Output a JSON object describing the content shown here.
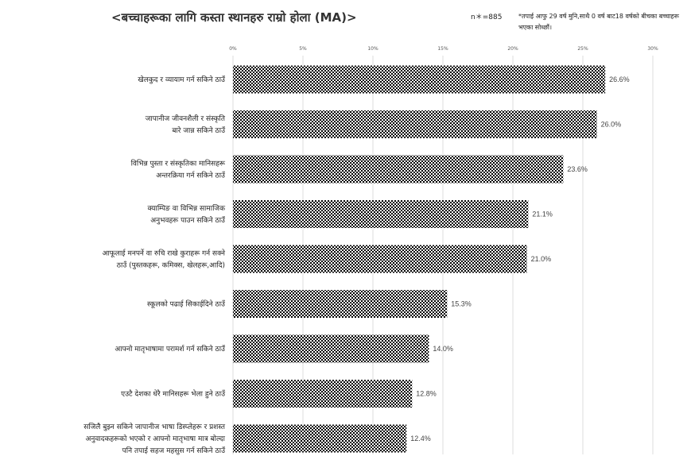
{
  "chart_data": {
    "type": "bar",
    "orientation": "horizontal",
    "title": "<बच्चाहरूका लागि कस्ता स्थानहरु राम्रो होला (MA)>",
    "sample_note": "n＊=885",
    "footnote": "*तपाई आफु 29 वर्ष मुनि,साथै 0 वर्ष बाट18 वर्षको बीचका बच्चाहरू भएका सोध्छौं।",
    "categories": [
      [
        "खेलकुद र व्यायाम गर्न सकिने ठाउँ"
      ],
      [
        "जापानीज जीवनशैली र संस्कृति",
        "बारे जान्न सकिने ठाउँ"
      ],
      [
        "विभिन्न पुस्ता र संस्कृतिका मानिसहरू",
        "अन्तरक्रिया गर्न सकिने ठाउँ"
      ],
      [
        "क्याम्पिङ वा विभिन्न सामाजिक",
        "अनुभवहरू पाउन सकिने ठाउँ"
      ],
      [
        "आफूलाई मनपर्ने वा रुचि राखे कुराहरू गर्न सक्ने",
        "ठाउँ (पुस्तकहरू, कमिक्स, खेलहरू,आदि)"
      ],
      [
        "स्कूलको पढाई सिकाईदिने ठाउँ"
      ],
      [
        "आफ्नो मातृभाषामा परामर्श गर्न सकिने ठाउँ"
      ],
      [
        "एउटै देशका धेरै मानिसहरू भेला हुने ठाउँ"
      ],
      [
        "सजिलै बुझ्न सकिने जापानीज भाषा डिस्प्लेहरू र प्रशस्त",
        "अनुवादकहरूको भएको र आफ्नो मातृभाषा मात्र बोल्दा",
        "पनि तपाई सहज महसुस गर्न सकिने ठाउँ"
      ]
    ],
    "values": [
      26.6,
      26.0,
      23.6,
      21.1,
      21.0,
      15.3,
      14.0,
      12.8,
      12.4
    ],
    "value_labels": [
      "26.6%",
      "26.0%",
      "23.6%",
      "21.1%",
      "21.0%",
      "15.3%",
      "14.0%",
      "12.8%",
      "12.4%"
    ],
    "xlim": [
      0,
      30
    ],
    "x_ticks": [
      "0%",
      "5%",
      "10%",
      "15%",
      "20%",
      "25%",
      "30%"
    ],
    "grid": true,
    "bar_fill": "checkered black and white",
    "colors": {
      "bar_dark": "#000000",
      "bar_light": "#ffffff",
      "grid": "#dddddd",
      "text": "#222222"
    }
  }
}
